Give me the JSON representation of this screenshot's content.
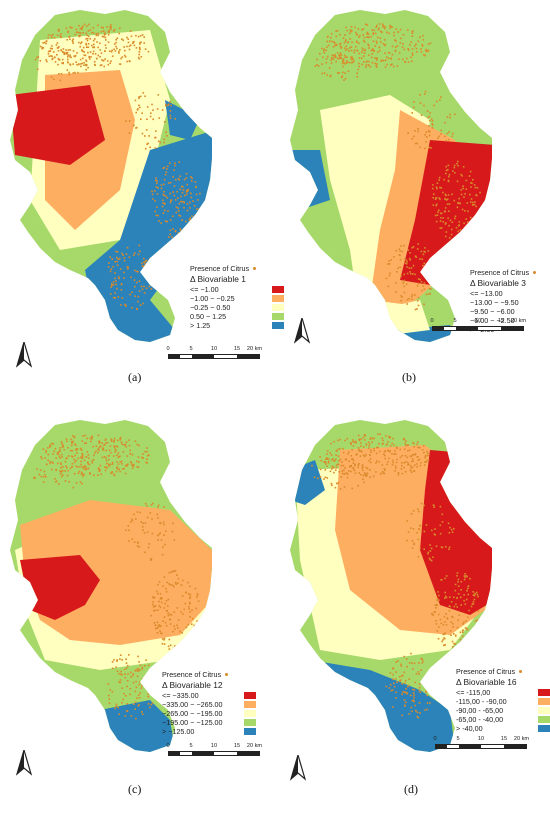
{
  "colors": {
    "c1": "#d7191c",
    "c2": "#fdae61",
    "c3": "#ffffbf",
    "c4": "#a6d96a",
    "c5": "#2b83ba",
    "citrus": "#d98a2b"
  },
  "scale_labels": [
    "0",
    "5",
    "10",
    "15",
    "20 km"
  ],
  "panels": [
    {
      "label": "(a)",
      "presence_label": "Presence of Citrus",
      "legend_title": "Δ Biovariable 1",
      "legend_items": [
        "<= −1.00",
        "−1.00 − −0.25",
        "−0.25 − 0.50",
        "0.50 − 1.25",
        "> 1.25"
      ]
    },
    {
      "label": "(b)",
      "presence_label": "Presence of Citrus",
      "legend_title": "Δ Biovariable 3",
      "legend_items": [
        "<= −13.00",
        "−13.00 − −9.50",
        "−9.50 − −6.00",
        "−6.00 − −2.50",
        "> −2.50"
      ]
    },
    {
      "label": "(c)",
      "presence_label": "Presence of Citrus",
      "legend_title": "Δ Biovariable 12",
      "legend_items": [
        "<= −335.00",
        "−335.00 − −265.00",
        "−265.00 − −195.00",
        "−195.00 − −125.00",
        "> −125.00"
      ]
    },
    {
      "label": "(d)",
      "presence_label": "Presence of Citrus",
      "legend_title": "Δ Biovariable 16",
      "legend_items": [
        "<= -115,00",
        "-115,00 - -90,00",
        "-90,00 - -65,00",
        "-65,00 - -40,00",
        "> -40,00"
      ]
    }
  ]
}
